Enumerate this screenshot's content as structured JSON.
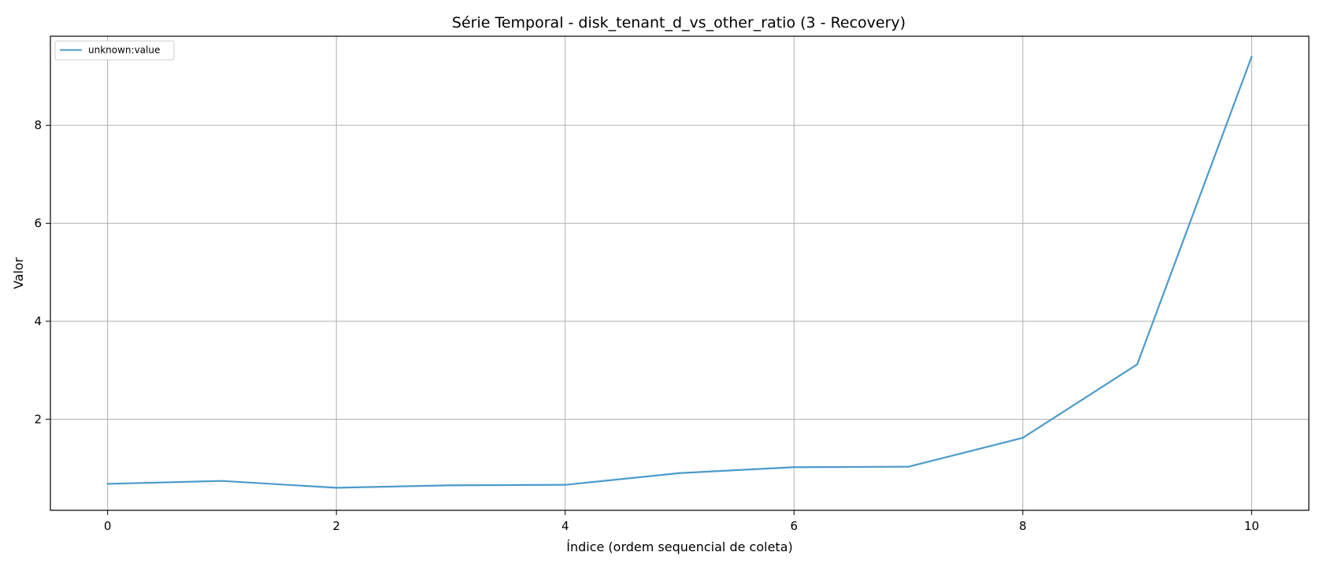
{
  "chart_data": {
    "type": "line",
    "title": "Série Temporal - disk_tenant_d_vs_other_ratio (3 - Recovery)",
    "xlabel": "Índice (ordem sequencial de coleta)",
    "ylabel": "Valor",
    "xlim": [
      -0.5,
      10.5
    ],
    "ylim": [
      0.14,
      9.82
    ],
    "x_ticks": [
      0,
      2,
      4,
      6,
      8,
      10
    ],
    "y_ticks": [
      2,
      4,
      6,
      8
    ],
    "grid": true,
    "legend_position": "top-left",
    "series": [
      {
        "name": "unknown:value",
        "color": "#4C9BCB",
        "x": [
          0,
          1,
          2,
          3,
          4,
          5,
          6,
          7,
          8,
          9,
          10
        ],
        "values": [
          0.68,
          0.74,
          0.6,
          0.65,
          0.66,
          0.9,
          1.02,
          1.03,
          1.62,
          3.12,
          9.4
        ]
      }
    ]
  }
}
